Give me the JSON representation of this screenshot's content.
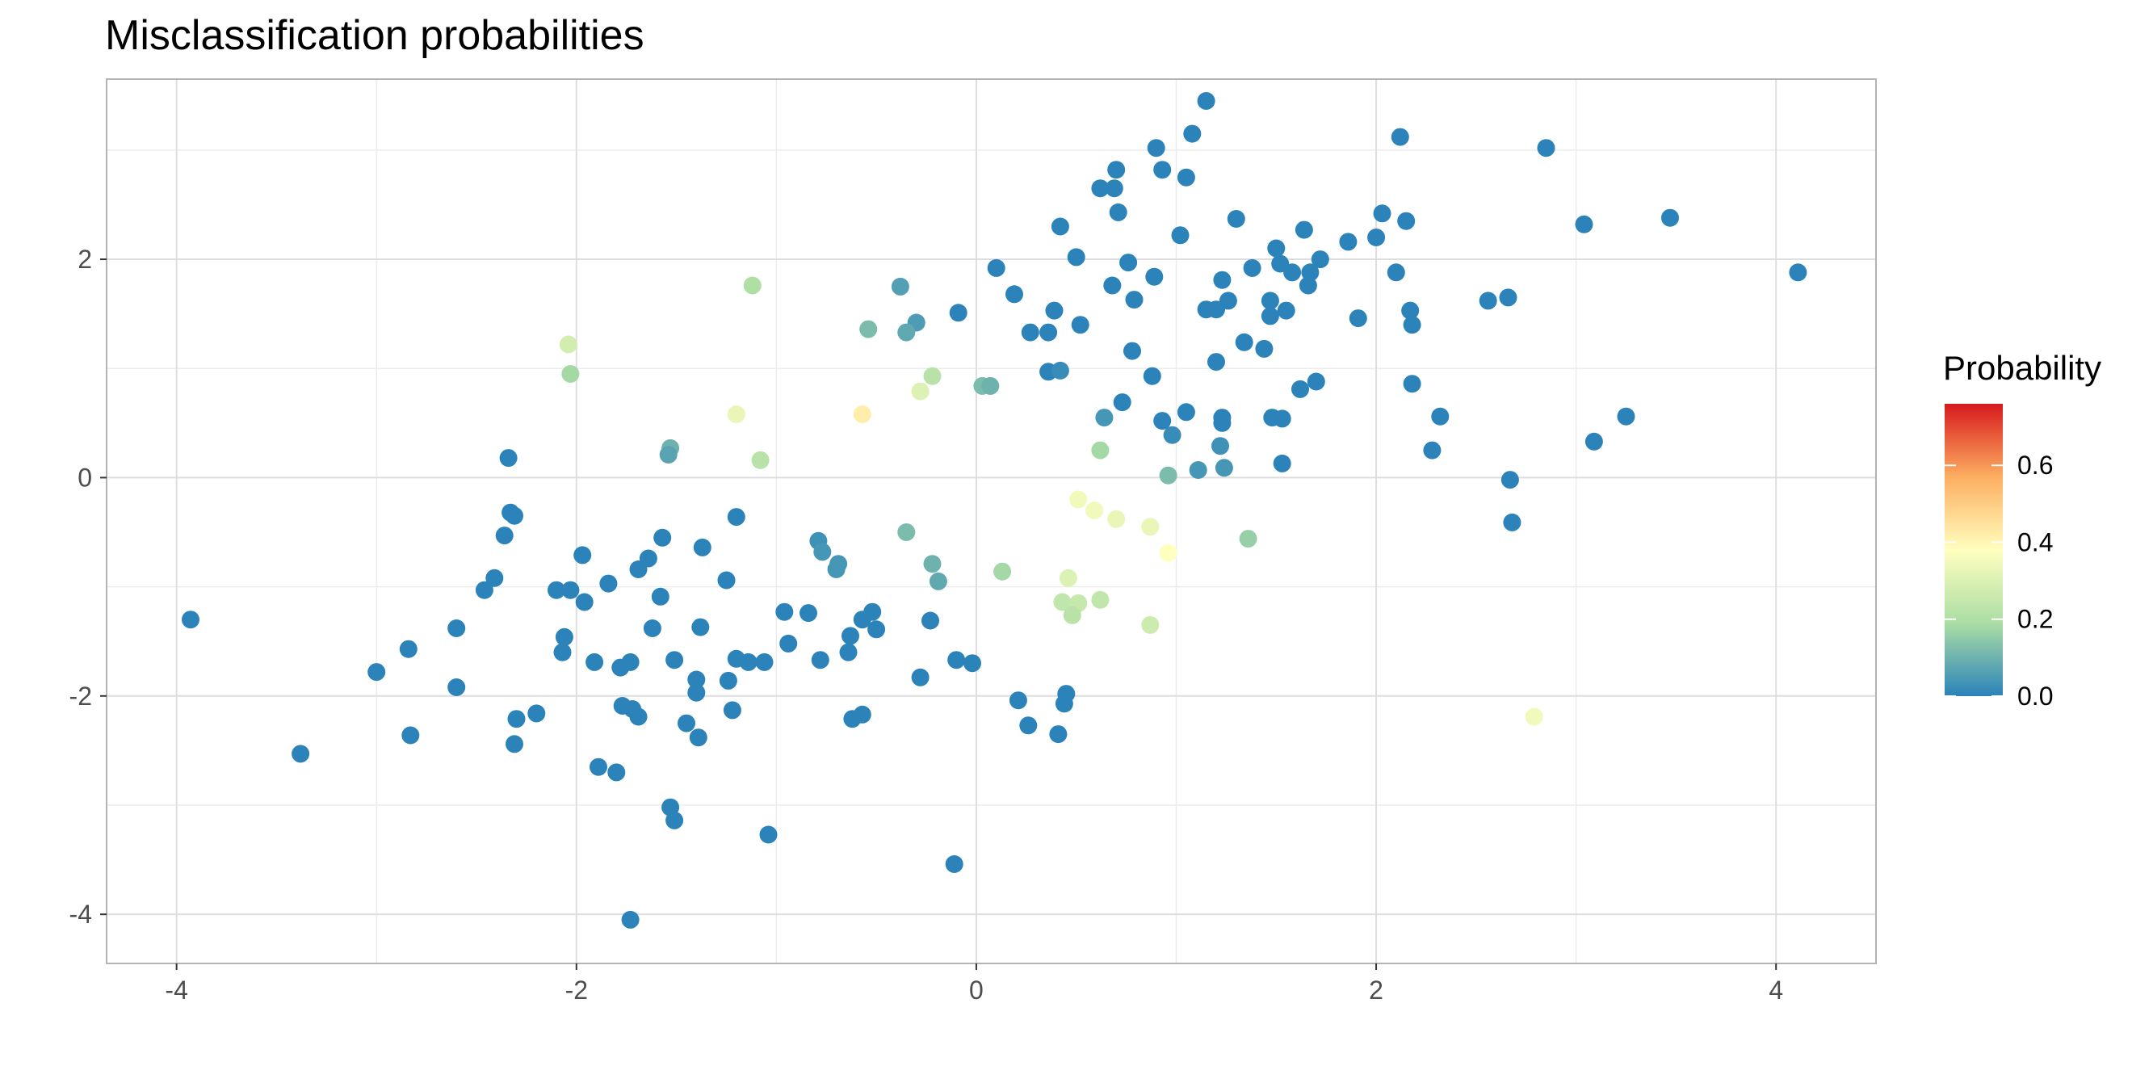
{
  "chart_data": {
    "type": "scatter",
    "title": "Misclassification probabilities",
    "xlabel": "",
    "ylabel": "",
    "xlim": [
      -4.35,
      4.5
    ],
    "ylim": [
      -4.45,
      3.65
    ],
    "x_ticks": [
      -4,
      -2,
      0,
      2,
      4
    ],
    "y_ticks": [
      -4,
      -2,
      0,
      2
    ],
    "x_tick_labels": [
      "-4",
      "-2",
      "0",
      "2",
      "4"
    ],
    "y_tick_labels": [
      "-4",
      "-2",
      "0",
      "2"
    ],
    "grid": true,
    "legend": {
      "title": "Probability",
      "position": "right",
      "min": 0,
      "max": 0.76,
      "breaks": [
        0.0,
        0.2,
        0.4,
        0.6
      ],
      "break_labels": [
        "0.0",
        "0.2",
        "0.4",
        "0.6"
      ],
      "palette": [
        "#2b83ba",
        "#abdda4",
        "#ffffbf",
        "#fdae61",
        "#d7191c"
      ]
    },
    "points": [
      {
        "x": 1.15,
        "y": 3.45,
        "p": 0.0
      },
      {
        "x": 2.12,
        "y": 3.12,
        "p": 0.0
      },
      {
        "x": 1.08,
        "y": 3.15,
        "p": 0.0
      },
      {
        "x": 2.85,
        "y": 3.02,
        "p": 0.0
      },
      {
        "x": 0.9,
        "y": 3.02,
        "p": 0.0
      },
      {
        "x": 0.7,
        "y": 2.82,
        "p": 0.0
      },
      {
        "x": 0.93,
        "y": 2.82,
        "p": 0.0
      },
      {
        "x": 1.05,
        "y": 2.75,
        "p": 0.0
      },
      {
        "x": 0.62,
        "y": 2.65,
        "p": 0.0
      },
      {
        "x": 0.69,
        "y": 2.65,
        "p": 0.0
      },
      {
        "x": 0.71,
        "y": 2.43,
        "p": 0.0
      },
      {
        "x": 2.03,
        "y": 2.42,
        "p": 0.0
      },
      {
        "x": 1.3,
        "y": 2.37,
        "p": 0.0
      },
      {
        "x": 3.47,
        "y": 2.38,
        "p": 0.0
      },
      {
        "x": 2.15,
        "y": 2.35,
        "p": 0.0
      },
      {
        "x": 3.04,
        "y": 2.32,
        "p": 0.0
      },
      {
        "x": 0.42,
        "y": 2.3,
        "p": 0.0
      },
      {
        "x": 1.64,
        "y": 2.27,
        "p": 0.0
      },
      {
        "x": 1.02,
        "y": 2.22,
        "p": 0.0
      },
      {
        "x": 2.0,
        "y": 2.2,
        "p": 0.0
      },
      {
        "x": 1.86,
        "y": 2.16,
        "p": 0.0
      },
      {
        "x": 1.5,
        "y": 2.1,
        "p": 0.0
      },
      {
        "x": 0.5,
        "y": 2.02,
        "p": 0.0
      },
      {
        "x": 1.72,
        "y": 2.0,
        "p": 0.0
      },
      {
        "x": 0.76,
        "y": 1.97,
        "p": 0.0
      },
      {
        "x": 1.52,
        "y": 1.96,
        "p": 0.0
      },
      {
        "x": 0.1,
        "y": 1.92,
        "p": 0.0
      },
      {
        "x": 1.38,
        "y": 1.92,
        "p": 0.0
      },
      {
        "x": 1.58,
        "y": 1.88,
        "p": 0.0
      },
      {
        "x": 1.67,
        "y": 1.88,
        "p": 0.0
      },
      {
        "x": 2.1,
        "y": 1.88,
        "p": 0.0
      },
      {
        "x": 4.11,
        "y": 1.88,
        "p": 0.0
      },
      {
        "x": 0.89,
        "y": 1.84,
        "p": 0.0
      },
      {
        "x": 1.23,
        "y": 1.81,
        "p": 0.0
      },
      {
        "x": 0.68,
        "y": 1.76,
        "p": 0.0
      },
      {
        "x": 1.66,
        "y": 1.76,
        "p": 0.0
      },
      {
        "x": -0.38,
        "y": 1.75,
        "p": 0.06
      },
      {
        "x": -1.12,
        "y": 1.76,
        "p": 0.2
      },
      {
        "x": 0.19,
        "y": 1.68,
        "p": 0.0
      },
      {
        "x": 2.66,
        "y": 1.65,
        "p": 0.0
      },
      {
        "x": 0.79,
        "y": 1.63,
        "p": 0.0
      },
      {
        "x": 1.26,
        "y": 1.62,
        "p": 0.0
      },
      {
        "x": 1.47,
        "y": 1.62,
        "p": 0.0
      },
      {
        "x": 2.56,
        "y": 1.62,
        "p": 0.0
      },
      {
        "x": 1.15,
        "y": 1.54,
        "p": 0.0
      },
      {
        "x": 1.2,
        "y": 1.54,
        "p": 0.0
      },
      {
        "x": 2.17,
        "y": 1.53,
        "p": 0.0
      },
      {
        "x": 0.39,
        "y": 1.53,
        "p": 0.0
      },
      {
        "x": 1.55,
        "y": 1.53,
        "p": 0.0
      },
      {
        "x": -0.09,
        "y": 1.51,
        "p": 0.0
      },
      {
        "x": 1.47,
        "y": 1.48,
        "p": 0.0
      },
      {
        "x": 1.91,
        "y": 1.46,
        "p": 0.0
      },
      {
        "x": -0.3,
        "y": 1.42,
        "p": 0.05
      },
      {
        "x": 0.52,
        "y": 1.4,
        "p": 0.0
      },
      {
        "x": 2.18,
        "y": 1.4,
        "p": 0.0
      },
      {
        "x": -0.54,
        "y": 1.36,
        "p": 0.12
      },
      {
        "x": -0.35,
        "y": 1.33,
        "p": 0.08
      },
      {
        "x": 0.27,
        "y": 1.33,
        "p": 0.0
      },
      {
        "x": 0.36,
        "y": 1.33,
        "p": 0.0
      },
      {
        "x": 1.34,
        "y": 1.24,
        "p": 0.0
      },
      {
        "x": -2.04,
        "y": 1.22,
        "p": 0.28
      },
      {
        "x": 1.44,
        "y": 1.18,
        "p": 0.0
      },
      {
        "x": 0.78,
        "y": 1.16,
        "p": 0.0
      },
      {
        "x": 1.2,
        "y": 1.06,
        "p": 0.0
      },
      {
        "x": 0.36,
        "y": 0.97,
        "p": 0.0
      },
      {
        "x": 0.42,
        "y": 0.98,
        "p": 0.02
      },
      {
        "x": -2.03,
        "y": 0.95,
        "p": 0.18
      },
      {
        "x": 0.88,
        "y": 0.93,
        "p": 0.0
      },
      {
        "x": -0.22,
        "y": 0.93,
        "p": 0.22
      },
      {
        "x": 1.7,
        "y": 0.88,
        "p": 0.0
      },
      {
        "x": 2.18,
        "y": 0.86,
        "p": 0.0
      },
      {
        "x": 0.03,
        "y": 0.84,
        "p": 0.12
      },
      {
        "x": 0.07,
        "y": 0.84,
        "p": 0.1
      },
      {
        "x": 1.62,
        "y": 0.81,
        "p": 0.0
      },
      {
        "x": -0.28,
        "y": 0.79,
        "p": 0.3
      },
      {
        "x": 0.73,
        "y": 0.69,
        "p": 0.0
      },
      {
        "x": 1.05,
        "y": 0.6,
        "p": 0.0
      },
      {
        "x": -1.2,
        "y": 0.58,
        "p": 0.33
      },
      {
        "x": -0.57,
        "y": 0.58,
        "p": 0.42
      },
      {
        "x": 2.32,
        "y": 0.56,
        "p": 0.0
      },
      {
        "x": 3.25,
        "y": 0.56,
        "p": 0.0
      },
      {
        "x": 0.64,
        "y": 0.55,
        "p": 0.04
      },
      {
        "x": 1.23,
        "y": 0.55,
        "p": 0.0
      },
      {
        "x": 1.48,
        "y": 0.55,
        "p": 0.0
      },
      {
        "x": 1.53,
        "y": 0.54,
        "p": 0.0
      },
      {
        "x": 0.93,
        "y": 0.52,
        "p": 0.0
      },
      {
        "x": 1.23,
        "y": 0.5,
        "p": 0.0
      },
      {
        "x": 0.98,
        "y": 0.39,
        "p": 0.02
      },
      {
        "x": 3.09,
        "y": 0.33,
        "p": 0.0
      },
      {
        "x": 1.22,
        "y": 0.29,
        "p": 0.03
      },
      {
        "x": -1.53,
        "y": 0.27,
        "p": 0.1
      },
      {
        "x": 2.28,
        "y": 0.25,
        "p": 0.0
      },
      {
        "x": 0.62,
        "y": 0.25,
        "p": 0.18
      },
      {
        "x": -1.54,
        "y": 0.21,
        "p": 0.07
      },
      {
        "x": -2.34,
        "y": 0.18,
        "p": 0.0
      },
      {
        "x": -1.08,
        "y": 0.16,
        "p": 0.22
      },
      {
        "x": 1.53,
        "y": 0.13,
        "p": 0.0
      },
      {
        "x": 1.24,
        "y": 0.09,
        "p": 0.04
      },
      {
        "x": 1.11,
        "y": 0.07,
        "p": 0.04
      },
      {
        "x": 0.96,
        "y": 0.02,
        "p": 0.12
      },
      {
        "x": 2.67,
        "y": -0.02,
        "p": 0.0
      },
      {
        "x": 0.51,
        "y": -0.2,
        "p": 0.35
      },
      {
        "x": 0.59,
        "y": -0.3,
        "p": 0.35
      },
      {
        "x": -2.33,
        "y": -0.32,
        "p": 0.0
      },
      {
        "x": -2.31,
        "y": -0.35,
        "p": 0.0
      },
      {
        "x": -1.2,
        "y": -0.36,
        "p": 0.0
      },
      {
        "x": 0.7,
        "y": -0.38,
        "p": 0.33
      },
      {
        "x": 2.68,
        "y": -0.41,
        "p": 0.0
      },
      {
        "x": 0.87,
        "y": -0.45,
        "p": 0.33
      },
      {
        "x": -0.35,
        "y": -0.5,
        "p": 0.12
      },
      {
        "x": -2.36,
        "y": -0.53,
        "p": 0.0
      },
      {
        "x": -1.57,
        "y": -0.55,
        "p": 0.0
      },
      {
        "x": 1.36,
        "y": -0.56,
        "p": 0.16
      },
      {
        "x": -0.79,
        "y": -0.58,
        "p": 0.03
      },
      {
        "x": -1.37,
        "y": -0.64,
        "p": 0.0
      },
      {
        "x": 0.96,
        "y": -0.69,
        "p": 0.38
      },
      {
        "x": -0.77,
        "y": -0.68,
        "p": 0.04
      },
      {
        "x": -1.97,
        "y": -0.71,
        "p": 0.0
      },
      {
        "x": -1.64,
        "y": -0.74,
        "p": 0.0
      },
      {
        "x": -0.22,
        "y": -0.79,
        "p": 0.1
      },
      {
        "x": -0.69,
        "y": -0.79,
        "p": 0.04
      },
      {
        "x": -0.7,
        "y": -0.84,
        "p": 0.04
      },
      {
        "x": -1.69,
        "y": -0.84,
        "p": 0.0
      },
      {
        "x": 0.13,
        "y": -0.86,
        "p": 0.18
      },
      {
        "x": -2.41,
        "y": -0.92,
        "p": 0.0
      },
      {
        "x": 0.46,
        "y": -0.92,
        "p": 0.3
      },
      {
        "x": -1.25,
        "y": -0.94,
        "p": 0.0
      },
      {
        "x": -0.19,
        "y": -0.95,
        "p": 0.08
      },
      {
        "x": -1.84,
        "y": -0.97,
        "p": 0.0
      },
      {
        "x": -2.46,
        "y": -1.03,
        "p": 0.0
      },
      {
        "x": -2.1,
        "y": -1.03,
        "p": 0.0
      },
      {
        "x": -2.03,
        "y": -1.03,
        "p": 0.0
      },
      {
        "x": -1.58,
        "y": -1.09,
        "p": 0.0
      },
      {
        "x": 0.62,
        "y": -1.12,
        "p": 0.24
      },
      {
        "x": 0.43,
        "y": -1.14,
        "p": 0.24
      },
      {
        "x": -1.96,
        "y": -1.14,
        "p": 0.0
      },
      {
        "x": 0.51,
        "y": -1.15,
        "p": 0.25
      },
      {
        "x": -0.96,
        "y": -1.23,
        "p": 0.0
      },
      {
        "x": -0.84,
        "y": -1.24,
        "p": 0.0
      },
      {
        "x": -0.52,
        "y": -1.23,
        "p": 0.0
      },
      {
        "x": 0.48,
        "y": -1.26,
        "p": 0.22
      },
      {
        "x": -0.57,
        "y": -1.3,
        "p": 0.0
      },
      {
        "x": -0.23,
        "y": -1.31,
        "p": 0.0
      },
      {
        "x": -3.93,
        "y": -1.3,
        "p": 0.0
      },
      {
        "x": 0.87,
        "y": -1.35,
        "p": 0.27
      },
      {
        "x": -2.6,
        "y": -1.38,
        "p": 0.0
      },
      {
        "x": -1.62,
        "y": -1.38,
        "p": 0.0
      },
      {
        "x": -1.38,
        "y": -1.37,
        "p": 0.0
      },
      {
        "x": -0.5,
        "y": -1.39,
        "p": 0.0
      },
      {
        "x": -0.63,
        "y": -1.45,
        "p": 0.0
      },
      {
        "x": -2.06,
        "y": -1.46,
        "p": 0.0
      },
      {
        "x": -0.94,
        "y": -1.52,
        "p": 0.0
      },
      {
        "x": -2.84,
        "y": -1.57,
        "p": 0.0
      },
      {
        "x": -2.07,
        "y": -1.6,
        "p": 0.0
      },
      {
        "x": -0.64,
        "y": -1.6,
        "p": 0.0
      },
      {
        "x": -1.2,
        "y": -1.66,
        "p": 0.0
      },
      {
        "x": -1.51,
        "y": -1.67,
        "p": 0.0
      },
      {
        "x": -0.1,
        "y": -1.67,
        "p": 0.0
      },
      {
        "x": -0.78,
        "y": -1.67,
        "p": 0.0
      },
      {
        "x": -1.91,
        "y": -1.69,
        "p": 0.0
      },
      {
        "x": -1.73,
        "y": -1.69,
        "p": 0.0
      },
      {
        "x": -1.14,
        "y": -1.69,
        "p": 0.0
      },
      {
        "x": -1.06,
        "y": -1.69,
        "p": 0.0
      },
      {
        "x": -0.02,
        "y": -1.7,
        "p": 0.0
      },
      {
        "x": -1.78,
        "y": -1.74,
        "p": 0.0
      },
      {
        "x": -3.0,
        "y": -1.78,
        "p": 0.0
      },
      {
        "x": -1.4,
        "y": -1.85,
        "p": 0.0
      },
      {
        "x": -1.24,
        "y": -1.86,
        "p": 0.0
      },
      {
        "x": -0.28,
        "y": -1.83,
        "p": 0.0
      },
      {
        "x": -2.6,
        "y": -1.92,
        "p": 0.0
      },
      {
        "x": -1.4,
        "y": -1.97,
        "p": 0.0
      },
      {
        "x": 0.45,
        "y": -1.98,
        "p": 0.0
      },
      {
        "x": 0.21,
        "y": -2.04,
        "p": 0.0
      },
      {
        "x": 0.44,
        "y": -2.07,
        "p": 0.0
      },
      {
        "x": -1.77,
        "y": -2.09,
        "p": 0.0
      },
      {
        "x": -1.72,
        "y": -2.12,
        "p": 0.0
      },
      {
        "x": -1.22,
        "y": -2.13,
        "p": 0.0
      },
      {
        "x": -2.2,
        "y": -2.16,
        "p": 0.0
      },
      {
        "x": -0.57,
        "y": -2.17,
        "p": 0.0
      },
      {
        "x": -1.69,
        "y": -2.19,
        "p": 0.0
      },
      {
        "x": 2.79,
        "y": -2.19,
        "p": 0.35
      },
      {
        "x": -2.3,
        "y": -2.21,
        "p": 0.0
      },
      {
        "x": -0.62,
        "y": -2.21,
        "p": 0.0
      },
      {
        "x": -1.45,
        "y": -2.25,
        "p": 0.0
      },
      {
        "x": 0.26,
        "y": -2.27,
        "p": 0.0
      },
      {
        "x": -2.83,
        "y": -2.36,
        "p": 0.0
      },
      {
        "x": 0.41,
        "y": -2.35,
        "p": 0.0
      },
      {
        "x": -1.39,
        "y": -2.38,
        "p": 0.0
      },
      {
        "x": -2.31,
        "y": -2.44,
        "p": 0.0
      },
      {
        "x": -3.38,
        "y": -2.53,
        "p": 0.0
      },
      {
        "x": -1.89,
        "y": -2.65,
        "p": 0.0
      },
      {
        "x": -1.8,
        "y": -2.7,
        "p": 0.0
      },
      {
        "x": -1.53,
        "y": -3.02,
        "p": 0.0
      },
      {
        "x": -1.51,
        "y": -3.14,
        "p": 0.0
      },
      {
        "x": -1.04,
        "y": -3.27,
        "p": 0.0
      },
      {
        "x": -0.11,
        "y": -3.54,
        "p": 0.0
      },
      {
        "x": -1.73,
        "y": -4.05,
        "p": 0.0
      }
    ]
  }
}
